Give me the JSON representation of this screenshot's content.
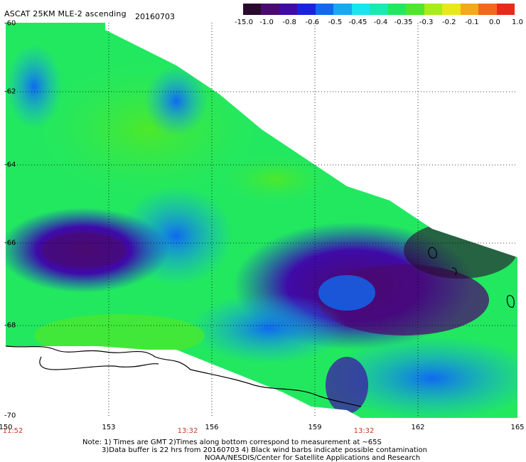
{
  "title": "ASCAT 25KM MLE-2 ascending",
  "date": "20160703",
  "colorbar": {
    "labels": [
      "-15.0",
      "-1.0",
      "-0.8",
      "-0.6",
      "-0.5",
      "-0.45",
      "-0.4",
      "-0.35",
      "-0.3",
      "-0.2",
      "-0.1",
      "0.0",
      "1.0"
    ],
    "colors": [
      "#2a0a2e",
      "#4a0a70",
      "#3f0aa8",
      "#1a22e0",
      "#0f6af0",
      "#16a8f4",
      "#19e4f0",
      "#18eab0",
      "#22e860",
      "#4ee82a",
      "#a8ec1a",
      "#e8e81a",
      "#f4a81a",
      "#f4681a",
      "#e82a1a"
    ]
  },
  "x_ticks": [
    "150",
    "153",
    "156",
    "159",
    "162",
    "165"
  ],
  "y_ticks": [
    "-60",
    "-62",
    "-64",
    "-66",
    "-68",
    "-70"
  ],
  "times": [
    "11:52",
    "13:32",
    "13:32"
  ],
  "notes": [
    "Note: 1) Times are GMT 2)Times along bottom correspond to measurement at ~65S",
    "3)Data buffer is 22 hrs from 20160703 4) Black wind barbs indicate possible contamination",
    "NOAA/NESDIS/Center for Satellite Applications and Research"
  ],
  "legend_title": "",
  "map_extent": {
    "lon": [
      150,
      165
    ],
    "lat": [
      -70,
      -60
    ]
  },
  "grid": true
}
